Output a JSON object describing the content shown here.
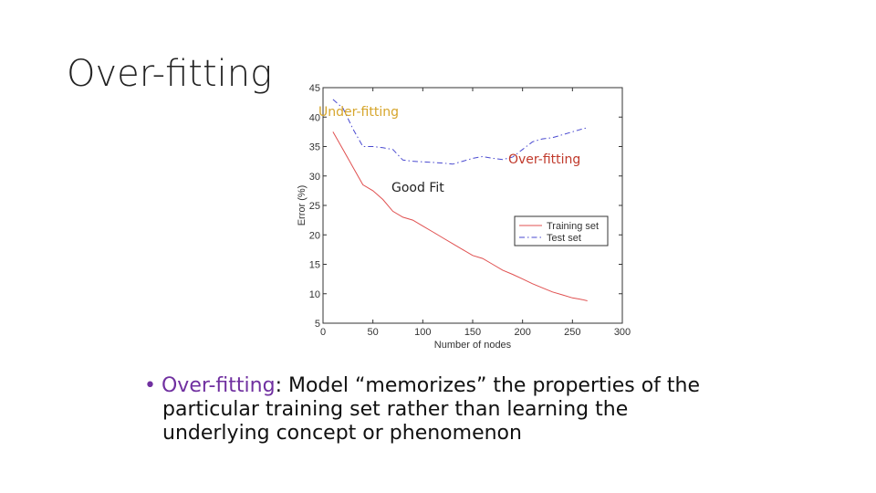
{
  "slide": {
    "title": "Over-fitting",
    "annotations": {
      "under": "Under-fitting",
      "over": "Over-fitting",
      "good": "Good Fit"
    },
    "bullet": {
      "term": "Over-fitting",
      "line1": ": Model “memorizes” the properties of the",
      "line2": "particular training set rather than learning the",
      "line3": "underlying concept or phenomenon"
    },
    "colors": {
      "accent": "#7030a0",
      "under": "#d6a52b",
      "over": "#c0392b"
    }
  },
  "chart_data": {
    "type": "line",
    "title": "",
    "xlabel": "Number of nodes",
    "ylabel": "Error (%)",
    "xlim": [
      0,
      300
    ],
    "ylim": [
      5,
      45
    ],
    "xticks": [
      0,
      50,
      100,
      150,
      200,
      250,
      300
    ],
    "yticks": [
      5,
      10,
      15,
      20,
      25,
      30,
      35,
      40,
      45
    ],
    "legend_position": "right",
    "series": [
      {
        "name": "Training set",
        "style": "solid",
        "color": "#e05050",
        "x": [
          10,
          20,
          30,
          40,
          50,
          60,
          70,
          80,
          90,
          100,
          110,
          120,
          130,
          140,
          150,
          160,
          170,
          180,
          190,
          200,
          210,
          220,
          230,
          240,
          250,
          260,
          265
        ],
        "y": [
          37.5,
          34.5,
          31.5,
          28.5,
          27.5,
          26,
          24,
          23,
          22.5,
          21.5,
          20.5,
          19.5,
          18.5,
          17.5,
          16.5,
          16,
          15,
          14,
          13.3,
          12.5,
          11.7,
          11,
          10.3,
          9.8,
          9.3,
          9,
          8.8
        ]
      },
      {
        "name": "Test set",
        "style": "dashdot",
        "color": "#4a4ad0",
        "x": [
          10,
          20,
          30,
          40,
          50,
          60,
          70,
          80,
          90,
          100,
          110,
          120,
          130,
          140,
          150,
          160,
          170,
          180,
          190,
          200,
          210,
          220,
          230,
          240,
          250,
          260,
          265
        ],
        "y": [
          43,
          41.5,
          38,
          35,
          35,
          34.8,
          34.5,
          32.7,
          32.5,
          32.4,
          32.3,
          32.2,
          32,
          32.5,
          33,
          33.3,
          33,
          32.8,
          33.2,
          34.5,
          35.8,
          36.3,
          36.5,
          37,
          37.5,
          38,
          38.2
        ]
      }
    ]
  }
}
